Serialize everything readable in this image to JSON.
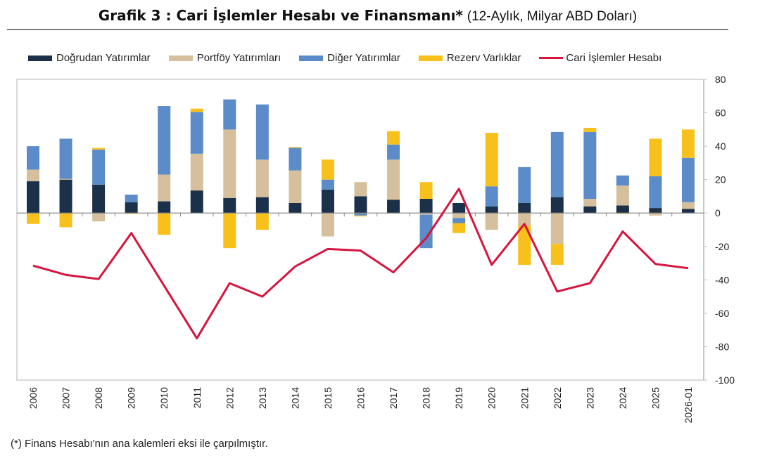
{
  "title": {
    "main": "Grafik 3 : Cari İşlemler Hesabı ve Finansmanı*",
    "sub": "(12-Aylık, Milyar ABD Doları)"
  },
  "footnote": "(*) Finans Hesabı'nın ana kalemleri eksi ile çarpılmıştır.",
  "chart_data": {
    "type": "bar",
    "stacked": true,
    "title": "Grafik 3 : Cari İşlemler Hesabı ve Finansmanı*",
    "subtitle": "(12-Aylık, Milyar ABD Doları)",
    "xlabel": "",
    "ylabel": "",
    "ylim": [
      -100,
      80
    ],
    "yticks": [
      80,
      60,
      40,
      20,
      0,
      -20,
      -40,
      -60,
      -80,
      -100
    ],
    "y_axis_side": "right",
    "legend_placement": "top",
    "grid": false,
    "categories": [
      "2006",
      "2007",
      "2008",
      "2009",
      "2010",
      "2011",
      "2012",
      "2013",
      "2014",
      "2015",
      "2016",
      "2017",
      "2018",
      "2019",
      "2020",
      "2021",
      "2022",
      "2023",
      "2024",
      "2025",
      "2026-01"
    ],
    "series": [
      {
        "name": "Doğrudan Yatırımlar",
        "type": "bar",
        "color": "#1b3049",
        "values": [
          19,
          20,
          17,
          6.5,
          7,
          13.5,
          9,
          9.5,
          6,
          14,
          10,
          8,
          8.5,
          6,
          4,
          6,
          9.5,
          4,
          4.5,
          3,
          2.5
        ]
      },
      {
        "name": "Portföy Yatırımları",
        "type": "bar",
        "color": "#d6bf9c",
        "values": [
          7,
          0.5,
          -5,
          0,
          16,
          22,
          41,
          22.5,
          19.5,
          -14,
          8.5,
          24,
          -1,
          -3,
          -10,
          -7.5,
          -18.5,
          4.5,
          12,
          -1.5,
          4
        ]
      },
      {
        "name": "Diğer Yatırımlar",
        "type": "bar",
        "color": "#5b8bc9",
        "values": [
          14,
          24,
          21,
          4.5,
          41,
          25,
          18,
          33,
          13.5,
          6,
          -1.5,
          9,
          -20,
          -3,
          12,
          21.5,
          39,
          40,
          6,
          19,
          26.5
        ]
      },
      {
        "name": "Rezerv Varlıklar",
        "type": "bar",
        "color": "#f8c01a",
        "values": [
          -6.5,
          -8.5,
          1,
          -0.5,
          -13,
          2,
          -21,
          -10,
          0.5,
          12,
          -0.5,
          8,
          10,
          -6,
          32,
          -23.5,
          -12.5,
          2.5,
          -0.5,
          22.5,
          17
        ]
      },
      {
        "name": "Cari İşlemler Hesabı",
        "type": "line",
        "color": "#d6153f",
        "values": [
          -31.5,
          -37,
          -39.5,
          -12,
          -43.5,
          -75,
          -42,
          -50,
          -32,
          -21.5,
          -22.5,
          -35.5,
          -15,
          14.5,
          -31,
          -6.5,
          -47,
          -42,
          -11,
          -30.5,
          -33
        ]
      }
    ]
  }
}
